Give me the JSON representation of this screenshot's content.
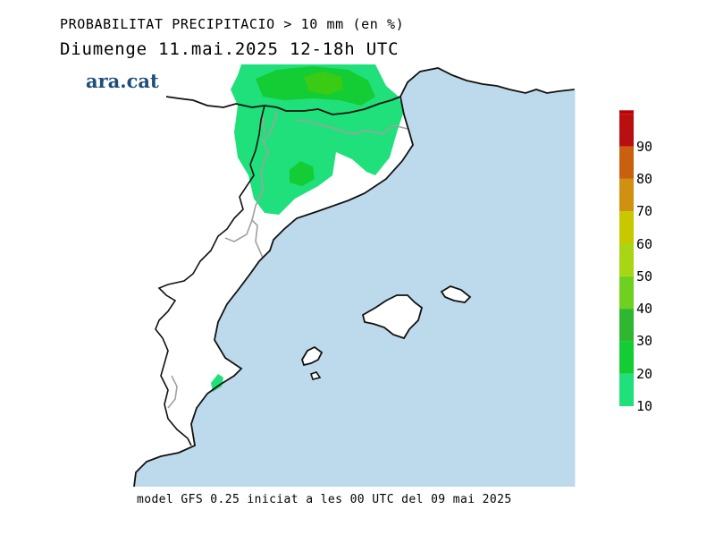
{
  "header": {
    "title": "PROBABILITAT PRECIPITACIO > 10 mm (en %)",
    "subtitle": "Diumenge  11.mai.2025  12-18h  UTC"
  },
  "brand": {
    "logo_text": "ara.cat",
    "color": "#1f4e79"
  },
  "footer": {
    "model_info": "model GFS 0.25 iniciat a les 00 UTC del 09 mai 2025"
  },
  "colors": {
    "sea": "#bdd9ec",
    "land": "#ffffff",
    "coast": "#111111",
    "border": "#a0a0a0",
    "p10": "#1fe07a",
    "p20": "#14cc33",
    "p30": "#3acc14"
  },
  "colorbar": {
    "levels": [
      {
        "value": "10",
        "color": "#1fe07a"
      },
      {
        "value": "20",
        "color": "#14cc33"
      },
      {
        "value": "30",
        "color": "#2fb82f"
      },
      {
        "value": "40",
        "color": "#6fd020"
      },
      {
        "value": "50",
        "color": "#a8d614"
      },
      {
        "value": "60",
        "color": "#c8c800"
      },
      {
        "value": "70",
        "color": "#d09010"
      },
      {
        "value": "80",
        "color": "#c86010"
      },
      {
        "value": "90",
        "color": "#b81010"
      }
    ],
    "top_color": "#c00000"
  }
}
